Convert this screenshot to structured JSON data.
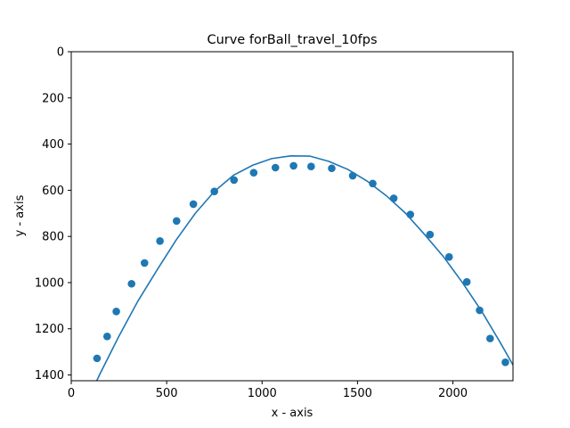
{
  "chart_data": {
    "type": "scatter",
    "title": "Curve forBall_travel_10fps",
    "xlabel": "x - axis",
    "ylabel": "y - axis",
    "xlim": [
      0,
      2315
    ],
    "ylim": [
      1425,
      0
    ],
    "y_inverted": true,
    "grid": false,
    "legend": "none",
    "xticks": [
      0,
      500,
      1000,
      1500,
      2000
    ],
    "yticks": [
      0,
      200,
      400,
      600,
      800,
      1000,
      1200,
      1400
    ],
    "color": "#1f77b4",
    "series": [
      {
        "kind": "points",
        "x": [
          135,
          188,
          236,
          316,
          384,
          465,
          552,
          640,
          750,
          853,
          956,
          1070,
          1165,
          1257,
          1365,
          1475,
          1580,
          1690,
          1777,
          1880,
          1980,
          2073,
          2140,
          2195,
          2275
        ],
        "y": [
          1328,
          1233,
          1125,
          1005,
          915,
          820,
          733,
          660,
          605,
          556,
          524,
          502,
          494,
          497,
          505,
          537,
          571,
          635,
          705,
          792,
          889,
          997,
          1120,
          1242,
          1345
        ]
      },
      {
        "kind": "fit-line",
        "x": [
          80,
          150,
          250,
          350,
          450,
          550,
          650,
          750,
          850,
          950,
          1050,
          1150,
          1250,
          1350,
          1450,
          1550,
          1650,
          1750,
          1850,
          1950,
          2050,
          2150,
          2250,
          2315
        ],
        "y": [
          1520,
          1396,
          1232,
          1079,
          945,
          815,
          700,
          605,
          535,
          492,
          463,
          451,
          452,
          475,
          510,
          560,
          623,
          698,
          790,
          887,
          1000,
          1123,
          1262,
          1357
        ]
      }
    ]
  }
}
